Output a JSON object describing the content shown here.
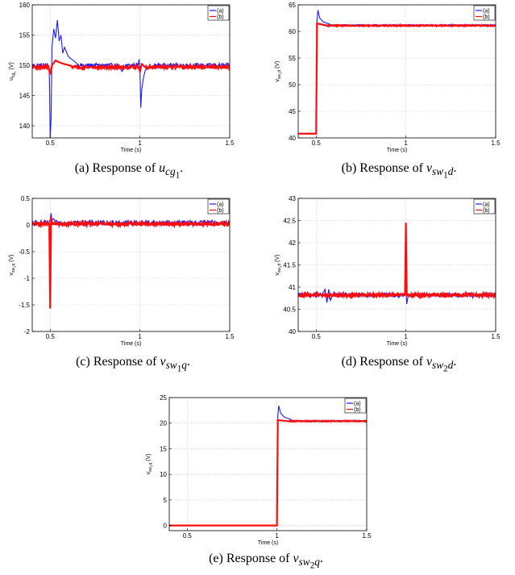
{
  "colors": {
    "series_a": "#1a1aff",
    "series_b": "#ff0d0d",
    "grid": "#c8c8c8"
  },
  "chart_data": [
    {
      "type": "line",
      "caption_prefix": "(a) Response of",
      "caption_math": "u",
      "caption_sub": "cg",
      "caption_subsub": "1",
      "xlabel": "Time (s)",
      "ylabel": "u",
      "ylabel_sub": "cg",
      "ylabel_subsub": "1",
      "ylabel_unit": " (V)",
      "xlim": [
        0.4,
        1.5
      ],
      "ylim": [
        138,
        160
      ],
      "xticks": [
        "0.5",
        "1",
        "1.5"
      ],
      "xtick_values": [
        0.5,
        1,
        1.5
      ],
      "yticks": [
        "140",
        "145",
        "150",
        "155",
        "160"
      ],
      "ytick_values": [
        140,
        145,
        150,
        155,
        160
      ],
      "grid": true,
      "legend": "top-right",
      "series": [
        {
          "name": "(a)",
          "base": 150.0,
          "noise": 0.35,
          "events": [
            {
              "t": 0.5,
              "points": [
                [
                  0.49,
                  150.0
                ],
                [
                  0.495,
                  149.2
                ],
                [
                  0.5,
                  138.0
                ],
                [
                  0.505,
                  141.0
                ],
                [
                  0.51,
                  153.0
                ],
                [
                  0.52,
                  156.0
                ],
                [
                  0.53,
                  154.5
                ],
                [
                  0.54,
                  157.5
                ],
                [
                  0.55,
                  154.0
                ],
                [
                  0.56,
                  155.0
                ],
                [
                  0.57,
                  152.0
                ],
                [
                  0.58,
                  153.0
                ],
                [
                  0.6,
                  151.5
                ],
                [
                  0.62,
                  151.0
                ],
                [
                  0.65,
                  150.3
                ]
              ]
            },
            {
              "t": 1.0,
              "points": [
                [
                  0.99,
                  150.0
                ],
                [
                  0.995,
                  151.0
                ],
                [
                  1.0,
                  149.0
                ],
                [
                  1.005,
                  143.0
                ],
                [
                  1.01,
                  146.0
                ],
                [
                  1.02,
                  148.0
                ],
                [
                  1.03,
                  149.2
                ],
                [
                  1.05,
                  149.6
                ],
                [
                  1.08,
                  150.0
                ]
              ]
            },
            {
              "t": 0.9,
              "points": [
                [
                  0.88,
                  150.0
                ],
                [
                  0.9,
                  149.0
                ],
                [
                  0.92,
                  150.0
                ]
              ]
            }
          ]
        },
        {
          "name": "(b)",
          "base": 149.7,
          "noise": 0.25,
          "events": [
            {
              "t": 0.5,
              "points": [
                [
                  0.49,
                  149.8
                ],
                [
                  0.5,
                  148.5
                ],
                [
                  0.51,
                  150.0
                ],
                [
                  0.53,
                  150.8
                ],
                [
                  0.55,
                  150.5
                ],
                [
                  0.58,
                  150.2
                ],
                [
                  0.62,
                  149.9
                ]
              ]
            },
            {
              "t": 1.0,
              "points": [
                [
                  0.99,
                  149.8
                ],
                [
                  1.0,
                  149.0
                ],
                [
                  1.01,
                  150.2
                ],
                [
                  1.03,
                  149.7
                ]
              ]
            }
          ]
        }
      ]
    },
    {
      "type": "line",
      "caption_prefix": "(b) Response of",
      "caption_math": "v",
      "caption_sub": "sw",
      "caption_subsub": "1",
      "caption_tail": "d",
      "xlabel": "Time (s)",
      "ylabel": "v",
      "ylabel_sub": "sw",
      "ylabel_subsub": "1",
      "ylabel_tail": "d",
      "ylabel_unit": " (V)",
      "xlim": [
        0.4,
        1.5
      ],
      "ylim": [
        40,
        65
      ],
      "xticks": [
        "0.5",
        "1",
        "1.5"
      ],
      "xtick_values": [
        0.5,
        1,
        1.5
      ],
      "yticks": [
        "40",
        "45",
        "50",
        "55",
        "60",
        "65"
      ],
      "ytick_values": [
        40,
        45,
        50,
        55,
        60,
        65
      ],
      "grid": true,
      "legend": "top-right",
      "series": [
        {
          "name": "(a)",
          "base": 61.2,
          "noise": 0.1,
          "events": [
            {
              "t": 0.5,
              "points": [
                [
                  0.4,
                  40.8
                ],
                [
                  0.49,
                  40.8
                ],
                [
                  0.5,
                  40.8
                ],
                [
                  0.505,
                  62.0
                ],
                [
                  0.51,
                  64.0
                ],
                [
                  0.52,
                  62.5
                ],
                [
                  0.54,
                  61.8
                ],
                [
                  0.58,
                  61.3
                ]
              ]
            }
          ]
        },
        {
          "name": "(b)",
          "base": 61.1,
          "noise": 0.1,
          "events": [
            {
              "t": 0.5,
              "points": [
                [
                  0.4,
                  40.8
                ],
                [
                  0.49,
                  40.8
                ],
                [
                  0.5,
                  40.8
                ],
                [
                  0.505,
                  61.5
                ],
                [
                  0.52,
                  61.4
                ],
                [
                  0.56,
                  61.1
                ]
              ]
            }
          ]
        }
      ]
    },
    {
      "type": "line",
      "caption_prefix": "(c) Response of",
      "caption_math": "v",
      "caption_sub": "sw",
      "caption_subsub": "1",
      "caption_tail": "q",
      "xlabel": "Time (s)",
      "ylabel": "v",
      "ylabel_sub": "sw",
      "ylabel_subsub": "1",
      "ylabel_tail": "q",
      "ylabel_unit": " (V)",
      "xlim": [
        0.4,
        1.5
      ],
      "ylim": [
        -2,
        0.5
      ],
      "xticks": [
        "0.5",
        "1",
        "1.5"
      ],
      "xtick_values": [
        0.5,
        1,
        1.5
      ],
      "yticks": [
        "-2",
        "-1.5",
        "-1",
        "-0.5",
        "0",
        "0.5"
      ],
      "ytick_values": [
        -2,
        -1.5,
        -1,
        -0.5,
        0,
        0.5
      ],
      "grid": true,
      "legend": "top-right",
      "series": [
        {
          "name": "(a)",
          "base": 0.04,
          "noise": 0.05,
          "events": [
            {
              "t": 0.5,
              "points": [
                [
                  0.49,
                  0.04
                ],
                [
                  0.5,
                  0.1
                ],
                [
                  0.505,
                  0.22
                ],
                [
                  0.51,
                  0.08
                ],
                [
                  0.52,
                  0.12
                ],
                [
                  0.53,
                  0.06
                ]
              ]
            }
          ]
        },
        {
          "name": "(b)",
          "base": 0.02,
          "noise": 0.03,
          "events": [
            {
              "t": 0.5,
              "points": [
                [
                  0.495,
                  0.02
                ],
                [
                  0.5,
                  -1.57
                ],
                [
                  0.505,
                  0.15
                ],
                [
                  0.51,
                  0.05
                ]
              ]
            }
          ]
        }
      ]
    },
    {
      "type": "line",
      "caption_prefix": "(d) Response of",
      "caption_math": "v",
      "caption_sub": "sw",
      "caption_subsub": "2",
      "caption_tail": "d",
      "xlabel": "Time (s)",
      "ylabel": "v",
      "ylabel_sub": "sw",
      "ylabel_subsub": "2",
      "ylabel_tail": "d",
      "ylabel_unit": " (V)",
      "xlim": [
        0.4,
        1.5
      ],
      "ylim": [
        40,
        43
      ],
      "xticks": [
        "0.5",
        "1",
        "1.5"
      ],
      "xtick_values": [
        0.5,
        1,
        1.5
      ],
      "yticks": [
        "40",
        "40.5",
        "41",
        "41.5",
        "42",
        "42.5",
        "43"
      ],
      "ytick_values": [
        40,
        40.5,
        41,
        41.5,
        42,
        42.5,
        43
      ],
      "grid": true,
      "legend": "top-right",
      "series": [
        {
          "name": "(a)",
          "base": 40.82,
          "noise": 0.05,
          "events": [
            {
              "t": 0.55,
              "points": [
                [
                  0.53,
                  40.82
                ],
                [
                  0.55,
                  40.95
                ],
                [
                  0.56,
                  40.65
                ],
                [
                  0.57,
                  40.95
                ],
                [
                  0.58,
                  40.7
                ],
                [
                  0.6,
                  40.9
                ]
              ]
            },
            {
              "t": 1.0,
              "points": [
                [
                  0.99,
                  40.82
                ],
                [
                  1.0,
                  40.9
                ],
                [
                  1.005,
                  40.62
                ],
                [
                  1.01,
                  40.75
                ],
                [
                  1.02,
                  40.85
                ]
              ]
            }
          ]
        },
        {
          "name": "(b)",
          "base": 40.82,
          "noise": 0.035,
          "events": [
            {
              "t": 1.0,
              "points": [
                [
                  0.995,
                  40.82
                ],
                [
                  1.0,
                  42.45
                ],
                [
                  1.005,
                  40.8
                ],
                [
                  1.01,
                  40.82
                ]
              ]
            }
          ]
        }
      ]
    },
    {
      "type": "line",
      "caption_prefix": "(e) Response of",
      "caption_math": "v",
      "caption_sub": "sw",
      "caption_subsub": "2",
      "caption_tail": "q",
      "xlabel": "Time (s)",
      "ylabel": "v",
      "ylabel_sub": "sw",
      "ylabel_subsub": "2",
      "ylabel_tail": "q",
      "ylabel_unit": " (V)",
      "xlim": [
        0.4,
        1.5
      ],
      "ylim": [
        -1,
        25
      ],
      "xticks": [
        "0.5",
        "1",
        "1.5"
      ],
      "xtick_values": [
        0.5,
        1,
        1.5
      ],
      "yticks": [
        "0",
        "5",
        "10",
        "15",
        "20",
        "25"
      ],
      "ytick_values": [
        0,
        5,
        10,
        15,
        20,
        25
      ],
      "grid": true,
      "legend": "top-right",
      "series": [
        {
          "name": "(a)",
          "base": 20.5,
          "noise": 0.08,
          "events": [
            {
              "t": 1.0,
              "points": [
                [
                  0.4,
                  0.0
                ],
                [
                  0.995,
                  0.0
                ],
                [
                  1.0,
                  0.0
                ],
                [
                  1.005,
                  21.5
                ],
                [
                  1.01,
                  23.4
                ],
                [
                  1.02,
                  22.0
                ],
                [
                  1.04,
                  21.2
                ],
                [
                  1.08,
                  20.7
                ]
              ]
            }
          ]
        },
        {
          "name": "(b)",
          "base": 20.4,
          "noise": 0.08,
          "events": [
            {
              "t": 1.0,
              "points": [
                [
                  0.4,
                  0.0
                ],
                [
                  0.995,
                  0.0
                ],
                [
                  1.0,
                  0.0
                ],
                [
                  1.005,
                  20.6
                ],
                [
                  1.03,
                  20.5
                ],
                [
                  1.06,
                  20.4
                ]
              ]
            }
          ]
        }
      ]
    }
  ]
}
